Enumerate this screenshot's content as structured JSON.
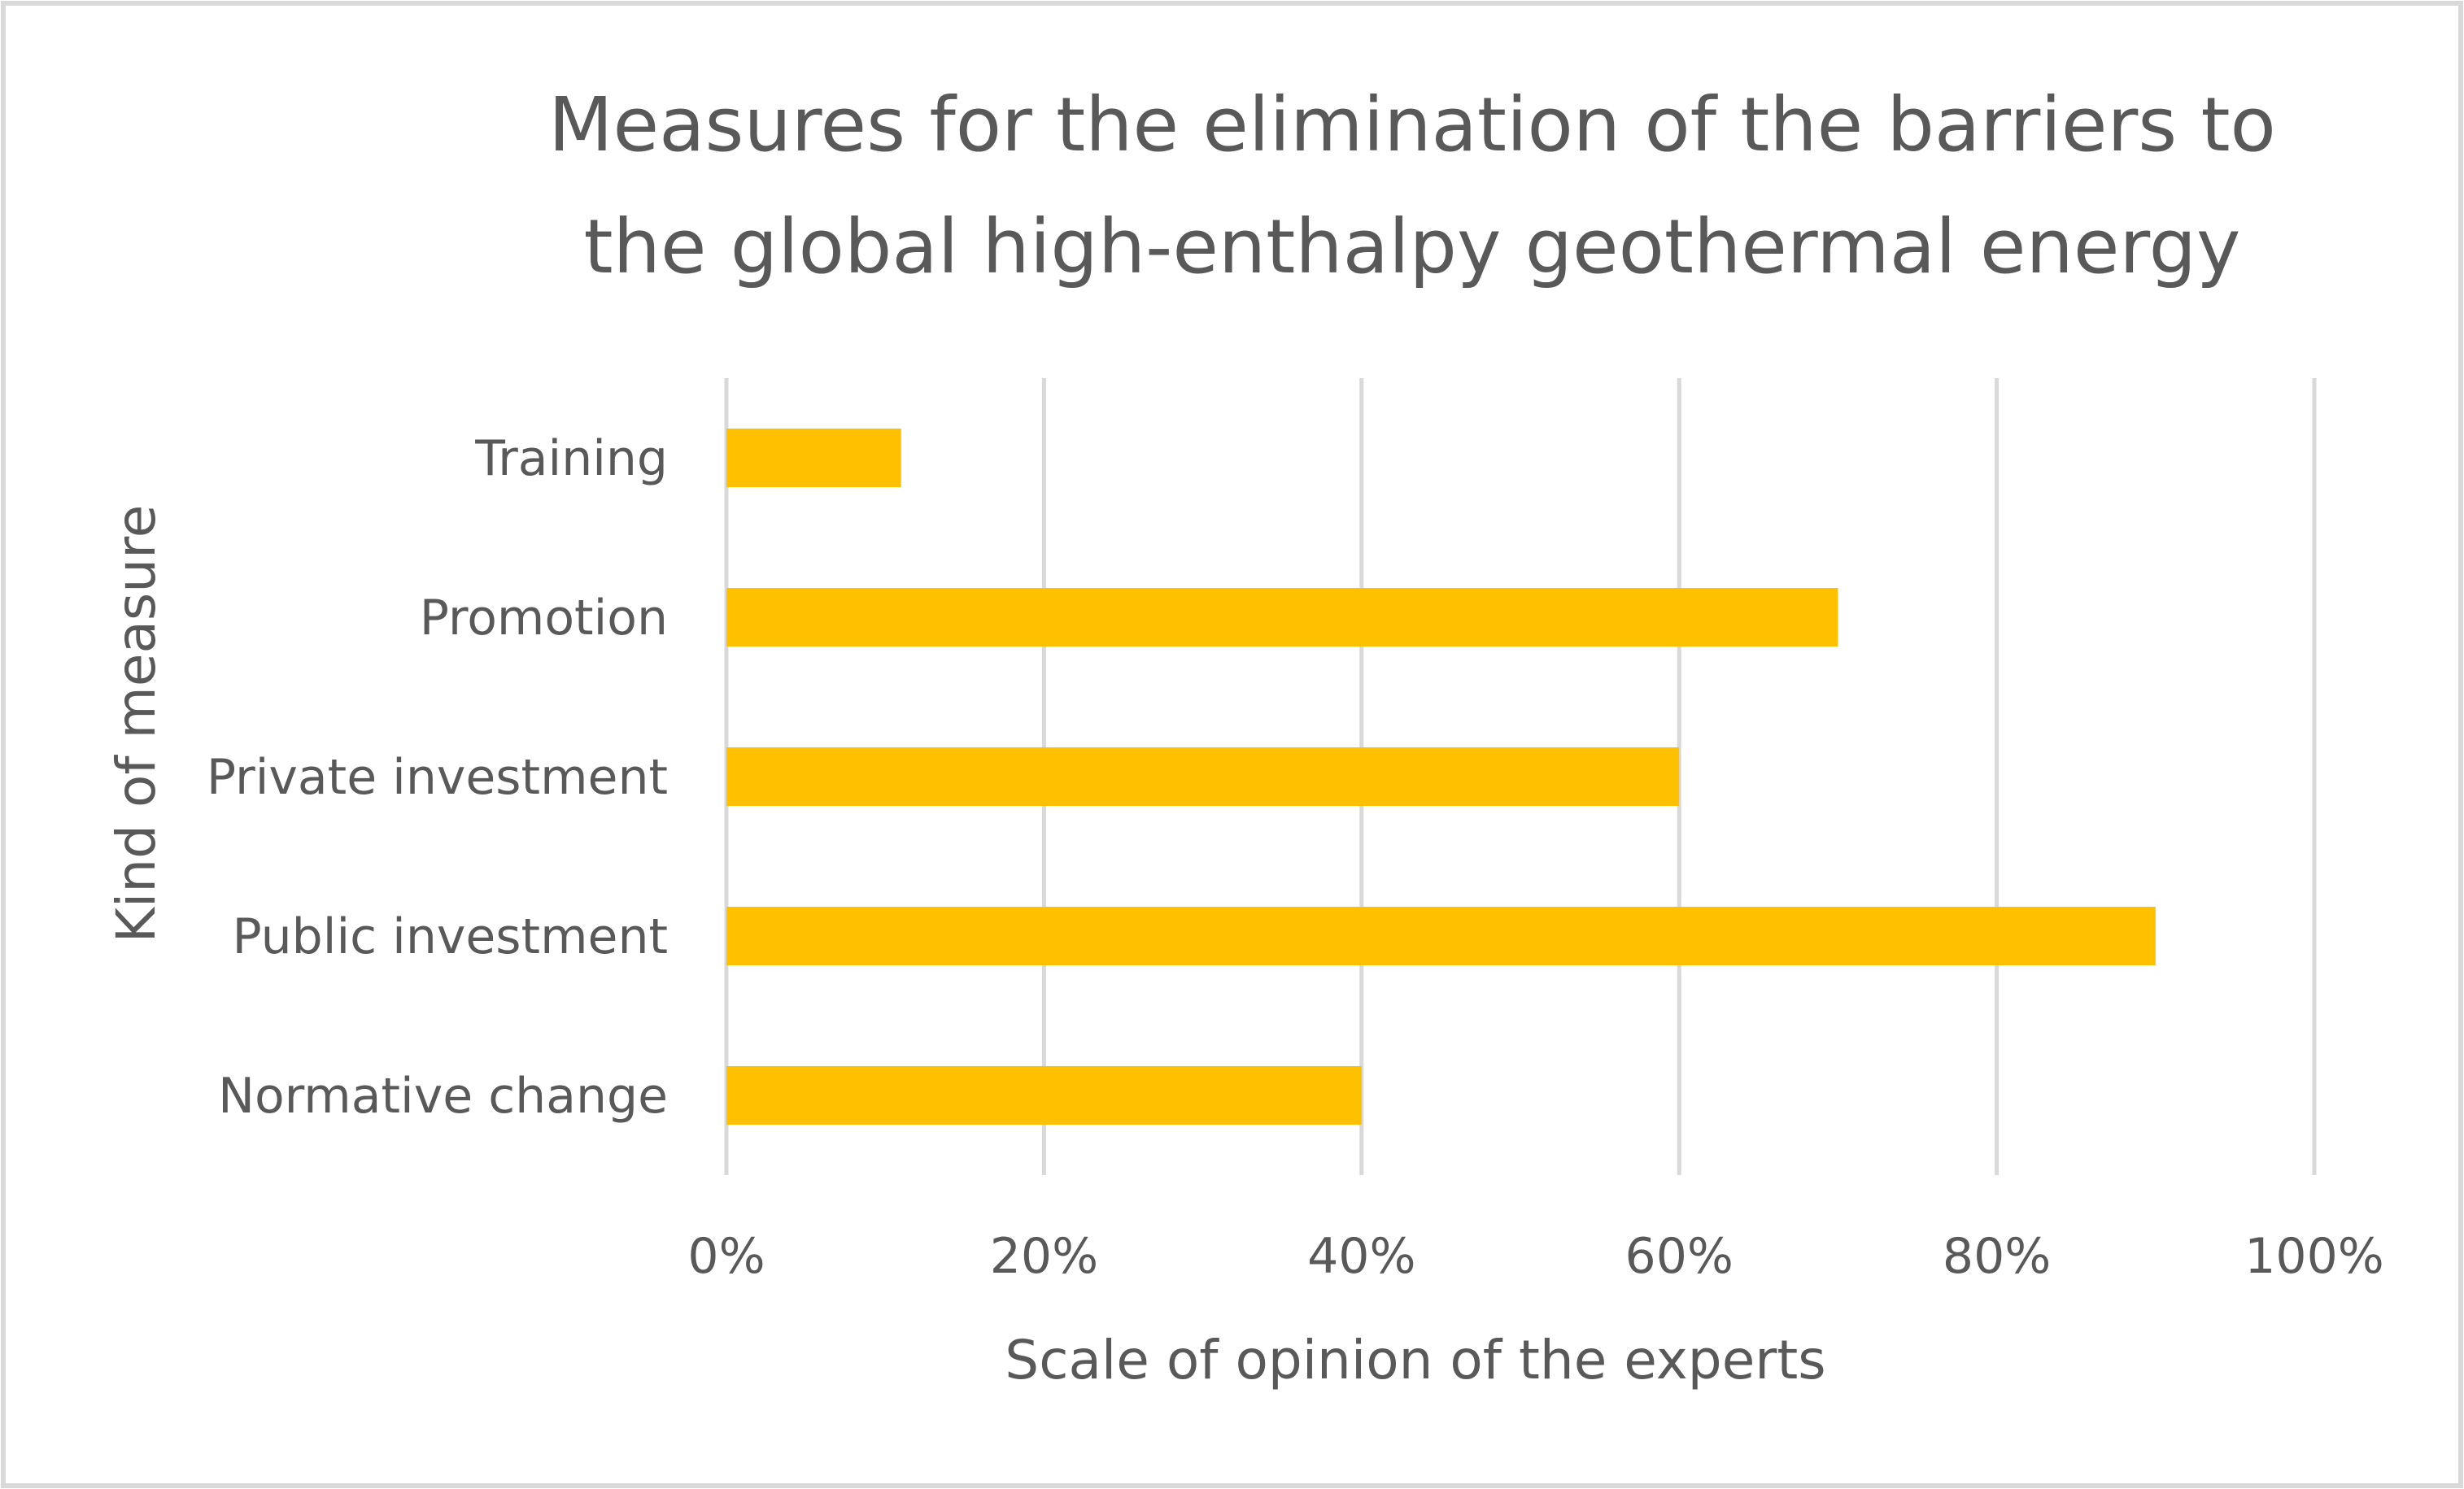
{
  "chart_data": {
    "type": "bar",
    "orientation": "horizontal",
    "title_lines": [
      "Measures for the elimination of the barriers to",
      "the global high-enthalpy geothermal energy"
    ],
    "xlabel": "Scale of opinion of the experts",
    "ylabel": "Kind of measure",
    "categories": [
      "Training",
      "Promotion",
      "Private investment",
      "Public investment",
      "Normative change"
    ],
    "values": [
      11,
      70,
      60,
      90,
      40
    ],
    "value_unit": "%",
    "xlim": [
      0,
      100
    ],
    "x_ticks": [
      "0%",
      "20%",
      "40%",
      "60%",
      "80%",
      "100%"
    ],
    "x_tick_values": [
      0,
      20,
      40,
      60,
      80,
      100
    ],
    "grid": "vertical",
    "legend": "none",
    "bar_color": "#FFC000",
    "border_color": "#d9d9d9",
    "text_color": "#595959"
  }
}
